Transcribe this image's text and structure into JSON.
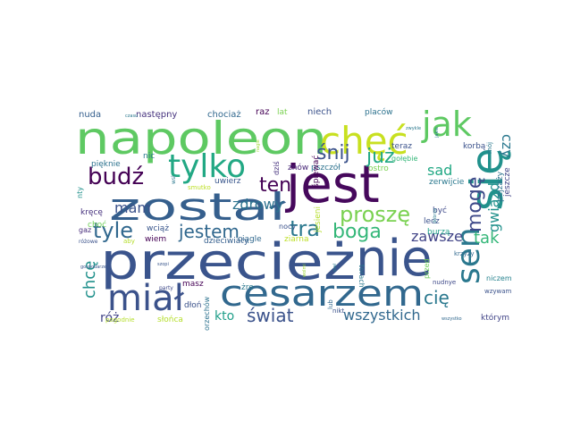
{
  "word_cloud": {
    "words": [
      {
        "text": "jest",
        "color": "#46085c"
      },
      {
        "text": "przecież",
        "color": "#3a548c"
      },
      {
        "text": "nie",
        "color": "#3a548c"
      },
      {
        "text": "napoleon",
        "color": "#5ec962"
      },
      {
        "text": "chęć",
        "color": "#c8e020"
      },
      {
        "text": "jak",
        "color": "#5ec962"
      },
      {
        "text": "się",
        "color": "#21918c"
      },
      {
        "text": "został",
        "color": "#355f8d"
      },
      {
        "text": "cesarzem",
        "color": "#31688e"
      },
      {
        "text": "miał",
        "color": "#3b528b"
      },
      {
        "text": "tylko",
        "color": "#22a884"
      },
      {
        "text": "sen",
        "color": "#2a788e"
      },
      {
        "text": "budź",
        "color": "#440154"
      },
      {
        "text": "tyle",
        "color": "#31688e"
      },
      {
        "text": "proszę",
        "color": "#7ad151"
      },
      {
        "text": "tra",
        "color": "#2a788e"
      },
      {
        "text": "boga",
        "color": "#35b779"
      },
      {
        "text": "jestem",
        "color": "#31688e"
      },
      {
        "text": "śnij",
        "color": "#3b528b"
      },
      {
        "text": "już",
        "color": "#22a884"
      },
      {
        "text": "ten",
        "color": "#440154"
      },
      {
        "text": "mogę",
        "color": "#3e4989"
      },
      {
        "text": "zdrowy",
        "color": "#2c728e"
      },
      {
        "text": "mam",
        "color": "#3b528b"
      },
      {
        "text": "chcę",
        "color": "#21918c"
      },
      {
        "text": "cię",
        "color": "#2a788e"
      },
      {
        "text": "świat",
        "color": "#3b528b"
      },
      {
        "text": "wszystkich",
        "color": "#31688e"
      },
      {
        "text": "kto",
        "color": "#1f9e89"
      },
      {
        "text": "róż",
        "color": "#414487"
      },
      {
        "text": "tak",
        "color": "#35b779"
      },
      {
        "text": "zawsze",
        "color": "#414487"
      },
      {
        "text": "gwiazd",
        "color": "#21918c"
      },
      {
        "text": "sad",
        "color": "#22a884"
      },
      {
        "text": "czy",
        "color": "#2a788e"
      },
      {
        "text": "nuda",
        "color": "#355f8d"
      },
      {
        "text": "następny",
        "color": "#46327e"
      },
      {
        "text": "chociaż",
        "color": "#31688e"
      },
      {
        "text": "raz",
        "color": "#440154"
      },
      {
        "text": "lat",
        "color": "#7ad151"
      },
      {
        "text": "niech",
        "color": "#3b528b"
      },
      {
        "text": "placów",
        "color": "#2c728e"
      },
      {
        "text": "pięknie",
        "color": "#2c728e"
      },
      {
        "text": "nic",
        "color": "#2a788e"
      },
      {
        "text": "uwierz",
        "color": "#39568c"
      },
      {
        "text": "znów",
        "color": "#482878"
      },
      {
        "text": "pszczół",
        "color": "#2c728e"
      },
      {
        "text": "ostro",
        "color": "#7ad151"
      },
      {
        "text": "teraz",
        "color": "#3b528b"
      },
      {
        "text": "gołębie",
        "color": "#35b779"
      },
      {
        "text": "korbą",
        "color": "#3b528b"
      },
      {
        "text": "zerwijcie",
        "color": "#2a788e"
      },
      {
        "text": "jeszcze",
        "color": "#414487"
      },
      {
        "text": "pejzaży",
        "color": "#2c728e"
      },
      {
        "text": "mój",
        "color": "#2a788e"
      },
      {
        "text": "dziś",
        "color": "#46327e"
      },
      {
        "text": "śpiewać",
        "color": "#440154"
      },
      {
        "text": "lecz",
        "color": "#3b528b"
      },
      {
        "text": "burzą",
        "color": "#1f9e89"
      },
      {
        "text": "krzyży",
        "color": "#31688e"
      },
      {
        "text": "nty",
        "color": "#21918c"
      },
      {
        "text": "kręcę",
        "color": "#46327e"
      },
      {
        "text": "choć",
        "color": "#6ece58"
      },
      {
        "text": "gaz",
        "color": "#472d7b"
      },
      {
        "text": "wciąż",
        "color": "#39568c"
      },
      {
        "text": "wiem",
        "color": "#440154"
      },
      {
        "text": "ciągle",
        "color": "#31688e"
      },
      {
        "text": "dzieciwiaty",
        "color": "#355f8d"
      },
      {
        "text": "nocy",
        "color": "#3b528b"
      },
      {
        "text": "ziarna",
        "color": "#bddf26"
      },
      {
        "text": "jesieni",
        "color": "#b5de2b"
      },
      {
        "text": "być",
        "color": "#3e4989"
      },
      {
        "text": "przed",
        "color": "#6ece58"
      },
      {
        "text": "torach",
        "color": "#2a788e"
      },
      {
        "text": "nudnye",
        "color": "#3e4989"
      },
      {
        "text": "niczem",
        "color": "#26828e"
      },
      {
        "text": "wzywam",
        "color": "#3b528b"
      },
      {
        "text": "którym",
        "color": "#414487"
      },
      {
        "text": "żre",
        "color": "#2a788e"
      },
      {
        "text": "masz",
        "color": "#440154"
      },
      {
        "text": "dłoń",
        "color": "#3b528b"
      },
      {
        "text": "orzechów",
        "color": "#2c728e"
      },
      {
        "text": "nikt",
        "color": "#3b528b"
      },
      {
        "text": "lub",
        "color": "#31688e"
      },
      {
        "text": "słońca",
        "color": "#b5de2b"
      },
      {
        "text": "pogodnie",
        "color": "#b5de2b"
      },
      {
        "text": "aby",
        "color": "#b5de2b"
      },
      {
        "text": "różowe",
        "color": "#3b528b"
      },
      {
        "text": "gospodarze",
        "color": "#39568c"
      },
      {
        "text": "smutko",
        "color": "#bddf26"
      },
      {
        "text": "wolmi",
        "color": "#a0da39"
      },
      {
        "text": "nagle",
        "color": "#a0da39"
      },
      {
        "text": "wsi",
        "color": "#2a788e"
      },
      {
        "text": "czasu",
        "color": "#2a788e"
      },
      {
        "text": "party",
        "color": "#3e4989"
      },
      {
        "text": "szopi",
        "color": "#39568c"
      },
      {
        "text": "wszystko",
        "color": "#31688e"
      },
      {
        "text": "zwykle",
        "color": "#2a788e"
      },
      {
        "text": "stał",
        "color": "#2a788e"
      },
      {
        "text": "jakie",
        "color": "#2a788e"
      },
      {
        "text": "dobrze",
        "color": "#2a788e"
      }
    ]
  }
}
